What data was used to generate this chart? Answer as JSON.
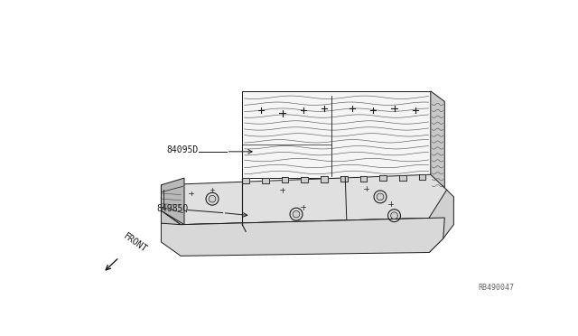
{
  "bg_color": "#ffffff",
  "label1": "84095D",
  "label2": "84985Q",
  "ref_number": "RB490047",
  "front_label": "FRONT",
  "figsize": [
    6.4,
    3.72
  ],
  "dpi": 100,
  "line_color": "#1a1a1a",
  "face_light": "#f5f5f5",
  "face_mid": "#e0e0e0",
  "face_dark": "#c8c8c8",
  "face_darker": "#b8b8b8"
}
